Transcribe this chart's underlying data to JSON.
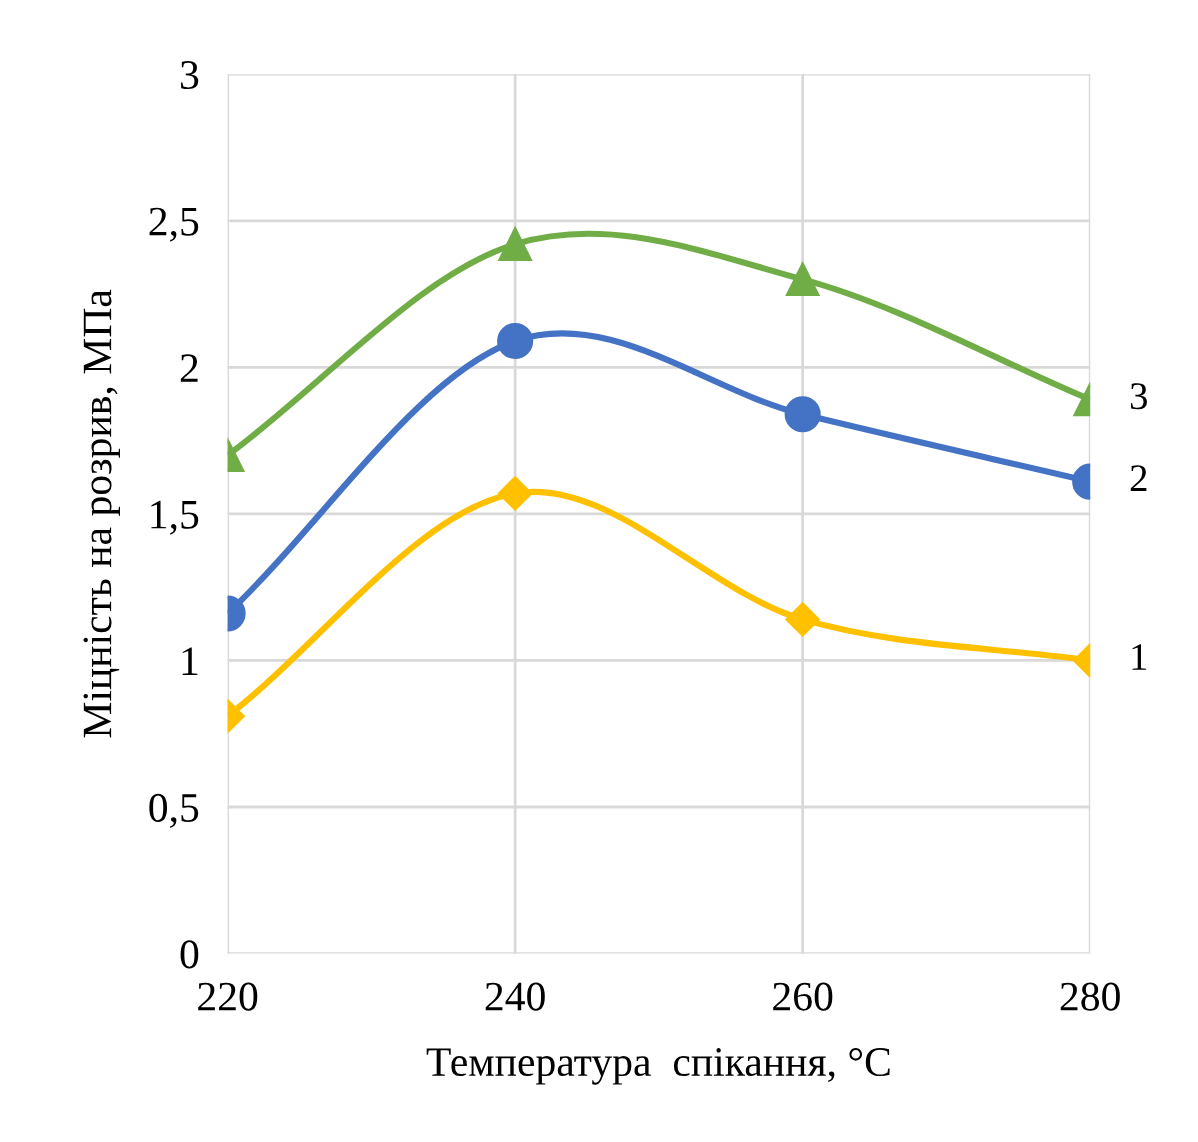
{
  "chart_data": {
    "type": "line",
    "xlabel": "Температура  спікання, °C",
    "ylabel": "Міцність на розрив, МПа",
    "x": [
      220,
      240,
      260,
      280
    ],
    "series": [
      {
        "name": "1",
        "color": "#ffc000",
        "values": [
          0.81,
          1.57,
          1.14,
          1.0
        ],
        "marker": "diamond"
      },
      {
        "name": "2",
        "color": "#4472c4",
        "values": [
          1.16,
          2.09,
          1.84,
          1.61
        ],
        "marker": "circle"
      },
      {
        "name": "3",
        "color": "#70ad47",
        "values": [
          1.7,
          2.42,
          2.3,
          1.89
        ],
        "marker": "triangle"
      }
    ],
    "xlim": [
      220,
      280
    ],
    "xticks": [
      220,
      240,
      260,
      280
    ],
    "ylim": [
      0,
      3
    ],
    "yticks": [
      0,
      {
        "value": 0.5,
        "label": "0,5"
      },
      1,
      {
        "value": 1.5,
        "label": "1,5"
      },
      2,
      {
        "value": 2.5,
        "label": "2,5"
      },
      3
    ],
    "grid": true,
    "legend": false
  }
}
